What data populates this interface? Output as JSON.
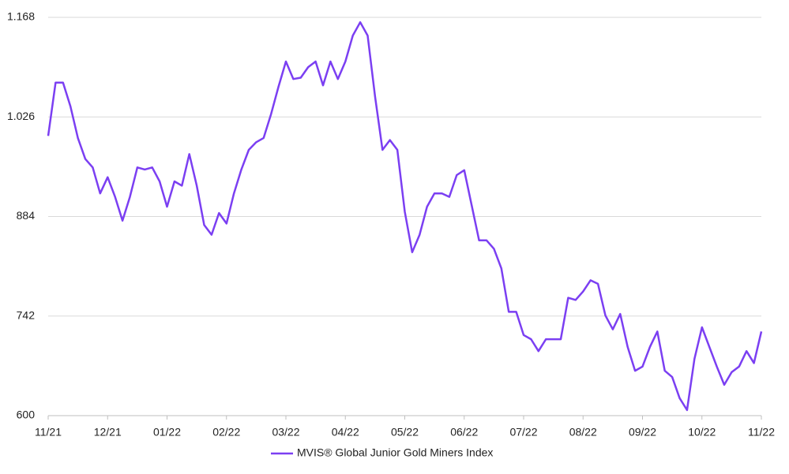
{
  "chart_data": {
    "type": "line",
    "categories": [
      "11/21",
      null,
      null,
      null,
      null,
      null,
      null,
      null,
      "12/21",
      null,
      null,
      null,
      null,
      null,
      null,
      null,
      "01/22",
      null,
      null,
      null,
      null,
      null,
      null,
      null,
      "02/22",
      null,
      null,
      null,
      null,
      null,
      null,
      null,
      "03/22",
      null,
      null,
      null,
      null,
      null,
      null,
      null,
      "04/22",
      null,
      null,
      null,
      null,
      null,
      null,
      null,
      "05/22",
      null,
      null,
      null,
      null,
      null,
      null,
      null,
      "06/22",
      null,
      null,
      null,
      null,
      null,
      null,
      null,
      "07/22",
      null,
      null,
      null,
      null,
      null,
      null,
      null,
      "08/22",
      null,
      null,
      null,
      null,
      null,
      null,
      null,
      "09/22",
      null,
      null,
      null,
      null,
      null,
      null,
      null,
      "10/22",
      null,
      null,
      null,
      null,
      null,
      null,
      null,
      "11/22"
    ],
    "series": [
      {
        "name": "MVIS® Global Junior Gold Miners Index",
        "color": "#7b3ff2",
        "values": [
          999,
          1075,
          1075,
          1041,
          996,
          966,
          954,
          917,
          940,
          912,
          878,
          912,
          954,
          951,
          954,
          934,
          898,
          934,
          928,
          973,
          928,
          872,
          858,
          889,
          874,
          917,
          951,
          979,
          990,
          996,
          1030,
          1069,
          1105,
          1080,
          1082,
          1097,
          1105,
          1071,
          1105,
          1080,
          1105,
          1142,
          1161,
          1142,
          1055,
          979,
          993,
          979,
          891,
          833,
          858,
          898,
          917,
          917,
          912,
          943,
          950,
          900,
          850,
          850,
          838,
          810,
          748,
          748,
          715,
          709,
          692,
          709,
          709,
          709,
          768,
          765,
          777,
          793,
          788,
          743,
          723,
          745,
          698,
          664,
          670,
          698,
          720,
          664,
          655,
          625,
          608,
          681,
          726,
          698,
          670,
          644,
          662,
          670,
          692,
          675,
          720
        ]
      }
    ],
    "ylim": [
      600,
      1168
    ],
    "yticks": [
      600,
      742,
      884,
      {
        "value": 1026,
        "label": "1.026"
      },
      {
        "value": 1168,
        "label": "1.168"
      }
    ],
    "grid": true
  }
}
